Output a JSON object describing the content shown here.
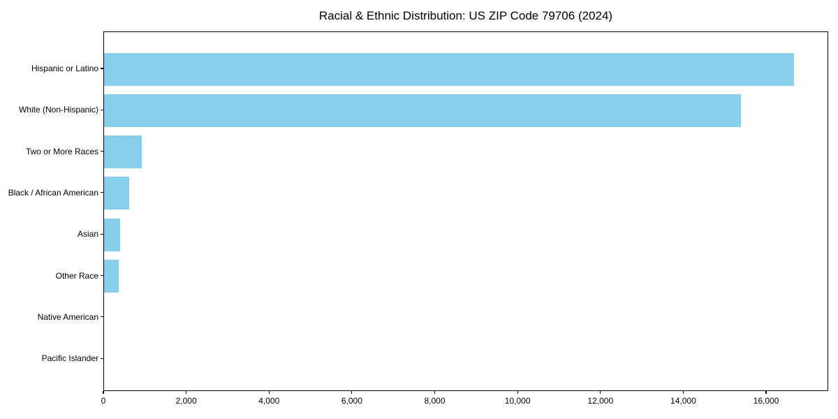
{
  "chart_data": {
    "type": "bar",
    "orientation": "horizontal",
    "title": "Racial & Ethnic Distribution: US ZIP Code 79706 (2024)",
    "categories": [
      "Hispanic or Latino",
      "White (Non-Hispanic)",
      "Two or More Races",
      "Black / African American",
      "Asian",
      "Other Race",
      "Native American",
      "Pacific Islander"
    ],
    "values": [
      16660,
      15380,
      910,
      610,
      380,
      360,
      0,
      0
    ],
    "xlabel": "",
    "ylabel": "",
    "xlim": [
      0,
      17500
    ],
    "xticks": [
      0,
      2000,
      4000,
      6000,
      8000,
      10000,
      12000,
      14000,
      16000
    ],
    "xtick_labels": [
      "0",
      "2,000",
      "4,000",
      "6,000",
      "8,000",
      "10,000",
      "12,000",
      "14,000",
      "16,000"
    ],
    "bar_color": "#87CEEB",
    "axis_color": "#000000",
    "text_color": "#000000",
    "grid": false,
    "legend_position": "none"
  }
}
